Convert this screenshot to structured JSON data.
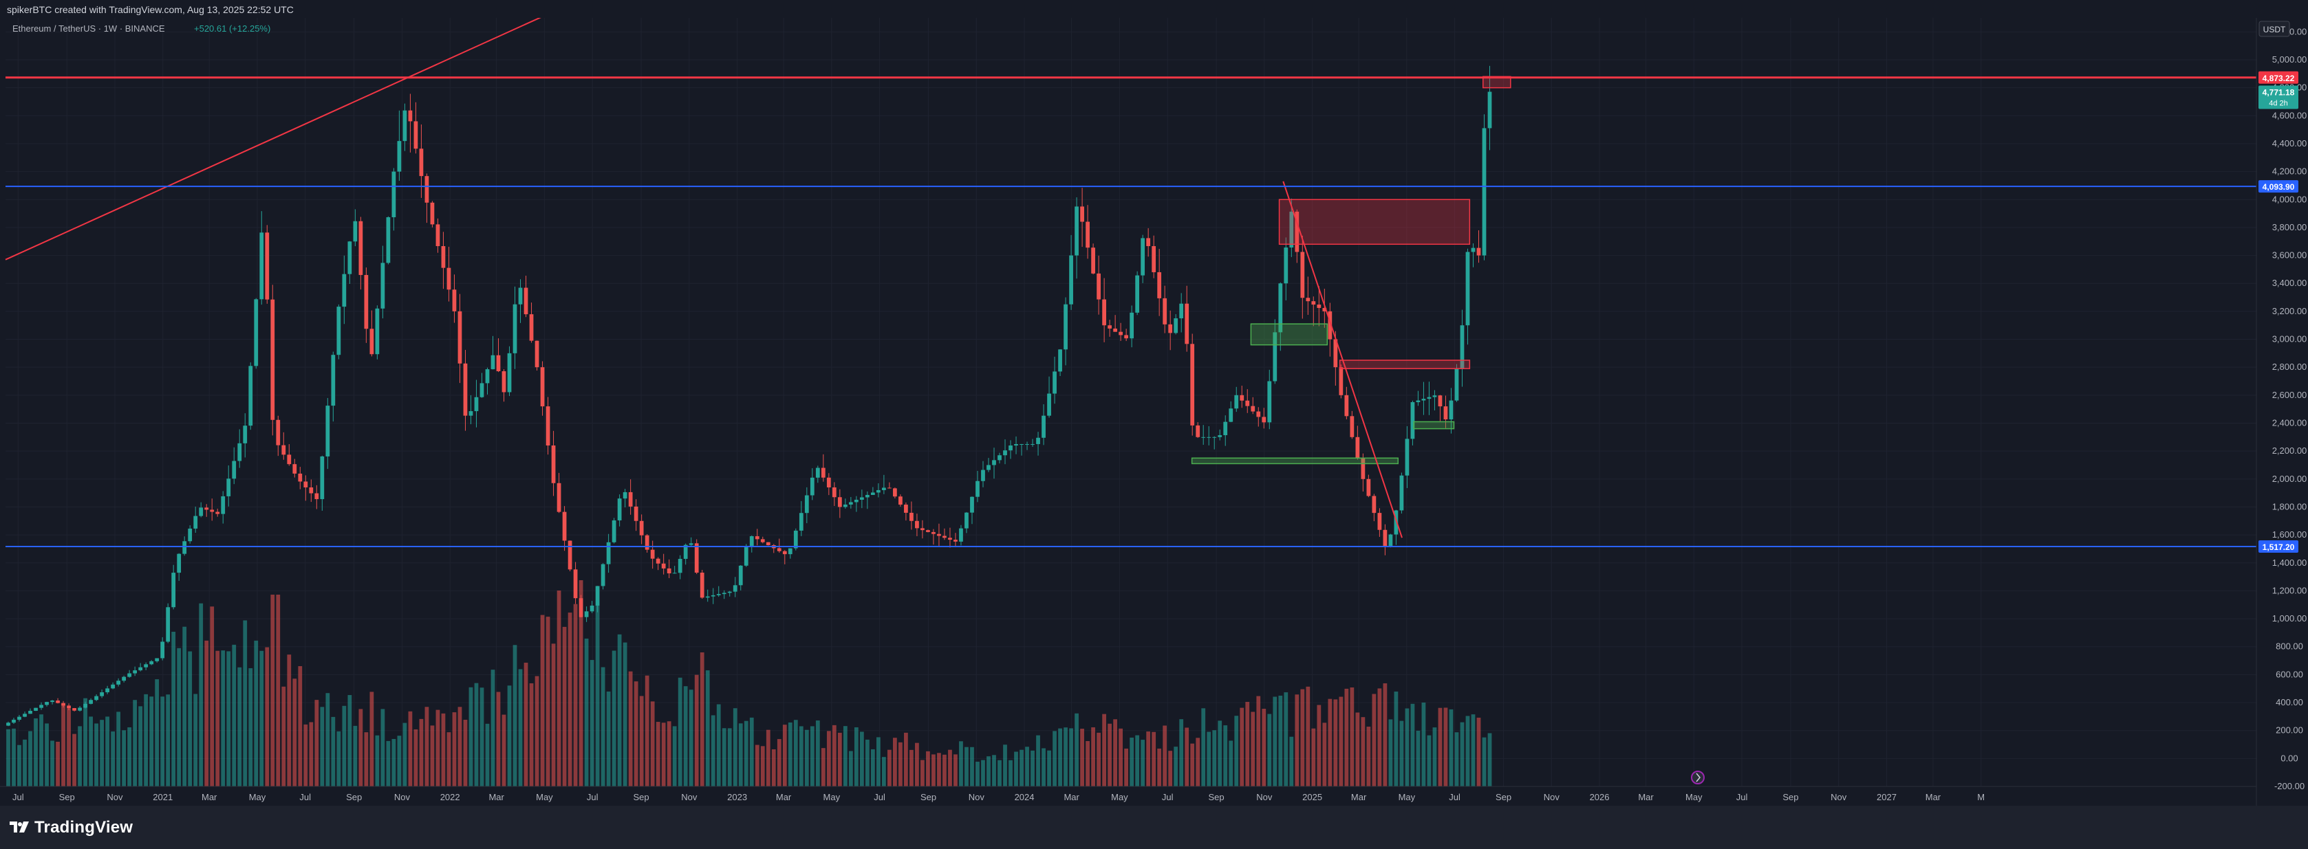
{
  "header": {
    "caption": "spikerBTC created with TradingView.com, Aug 13, 2025 22:52 UTC"
  },
  "footer": {
    "brand": "TradingView"
  },
  "legend": {
    "symbol": "Ethereum / TetherUS · 1W · BINANCE",
    "change": "+520.61 (+12.25%)"
  },
  "currency_button": "USDT",
  "colors": {
    "background": "#161a25",
    "up": "#26a69a",
    "down": "#ef5350",
    "resistance": "#f23645",
    "support": "#2962ff"
  },
  "chart_data": {
    "type": "candlestick",
    "timeframe": "1W",
    "ylim": [
      -200,
      5300
    ],
    "y_ticks": [
      5200,
      5000,
      4800,
      4600,
      4400,
      4200,
      4000,
      3800,
      3600,
      3400,
      3200,
      3000,
      2800,
      2600,
      2400,
      2200,
      2000,
      1800,
      1600,
      1400,
      1200,
      1000,
      800,
      600,
      400,
      200,
      0,
      -200
    ],
    "y_tick_labels": [
      "5,200.00",
      "5,000.00",
      "4,800.00",
      "4,600.00",
      "4,400.00",
      "4,200.00",
      "4,000.00",
      "3,800.00",
      "3,600.00",
      "3,400.00",
      "3,200.00",
      "3,000.00",
      "2,800.00",
      "2,600.00",
      "2,400.00",
      "2,200.00",
      "2,000.00",
      "1,800.00",
      "1,600.00",
      "1,400.00",
      "1,200.00",
      "1,000.00",
      "800.00",
      "600.00",
      "400.00",
      "200.00",
      "0.00",
      "-200.00"
    ],
    "x_range": [
      "2020-06-15",
      "2028-04-15"
    ],
    "x_ticks": [
      {
        "date": "2020-07-01",
        "label": "Jul"
      },
      {
        "date": "2020-09-01",
        "label": "Sep"
      },
      {
        "date": "2020-11-01",
        "label": "Nov"
      },
      {
        "date": "2021-01-01",
        "label": "2021"
      },
      {
        "date": "2021-03-01",
        "label": "Mar"
      },
      {
        "date": "2021-05-01",
        "label": "May"
      },
      {
        "date": "2021-07-01",
        "label": "Jul"
      },
      {
        "date": "2021-09-01",
        "label": "Sep"
      },
      {
        "date": "2021-11-01",
        "label": "Nov"
      },
      {
        "date": "2022-01-01",
        "label": "2022"
      },
      {
        "date": "2022-03-01",
        "label": "Mar"
      },
      {
        "date": "2022-05-01",
        "label": "May"
      },
      {
        "date": "2022-07-01",
        "label": "Jul"
      },
      {
        "date": "2022-09-01",
        "label": "Sep"
      },
      {
        "date": "2022-11-01",
        "label": "Nov"
      },
      {
        "date": "2023-01-01",
        "label": "2023"
      },
      {
        "date": "2023-03-01",
        "label": "Mar"
      },
      {
        "date": "2023-05-01",
        "label": "May"
      },
      {
        "date": "2023-07-01",
        "label": "Jul"
      },
      {
        "date": "2023-09-01",
        "label": "Sep"
      },
      {
        "date": "2023-11-01",
        "label": "Nov"
      },
      {
        "date": "2024-01-01",
        "label": "2024"
      },
      {
        "date": "2024-03-01",
        "label": "Mar"
      },
      {
        "date": "2024-05-01",
        "label": "May"
      },
      {
        "date": "2024-07-01",
        "label": "Jul"
      },
      {
        "date": "2024-09-01",
        "label": "Sep"
      },
      {
        "date": "2024-11-01",
        "label": "Nov"
      },
      {
        "date": "2025-01-01",
        "label": "2025"
      },
      {
        "date": "2025-03-01",
        "label": "Mar"
      },
      {
        "date": "2025-05-01",
        "label": "May"
      },
      {
        "date": "2025-07-01",
        "label": "Jul"
      },
      {
        "date": "2025-09-01",
        "label": "Sep"
      },
      {
        "date": "2025-11-01",
        "label": "Nov"
      },
      {
        "date": "2026-01-01",
        "label": "2026"
      },
      {
        "date": "2026-03-01",
        "label": "Mar"
      },
      {
        "date": "2026-05-01",
        "label": "May"
      },
      {
        "date": "2026-07-01",
        "label": "Jul"
      },
      {
        "date": "2026-09-01",
        "label": "Sep"
      },
      {
        "date": "2026-11-01",
        "label": "Nov"
      },
      {
        "date": "2027-01-01",
        "label": "2027"
      },
      {
        "date": "2027-03-01",
        "label": "Mar"
      },
      {
        "date": "2027-05-01",
        "label": "M"
      }
    ],
    "price_anchors": [
      [
        "2020-06-15",
        235
      ],
      [
        "2020-08-15",
        420
      ],
      [
        "2020-09-15",
        340
      ],
      [
        "2020-11-20",
        600
      ],
      [
        "2021-01-01",
        730
      ],
      [
        "2021-01-20",
        1400
      ],
      [
        "2021-02-20",
        1800
      ],
      [
        "2021-03-15",
        1750
      ],
      [
        "2021-04-20",
        2400
      ],
      [
        "2021-05-12",
        3900
      ],
      [
        "2021-05-25",
        2300
      ],
      [
        "2021-06-25",
        2000
      ],
      [
        "2021-07-20",
        1850
      ],
      [
        "2021-08-15",
        3200
      ],
      [
        "2021-09-05",
        3900
      ],
      [
        "2021-09-25",
        2800
      ],
      [
        "2021-10-25",
        4200
      ],
      [
        "2021-11-10",
        4700
      ],
      [
        "2021-12-05",
        4000
      ],
      [
        "2022-01-10",
        3200
      ],
      [
        "2022-01-25",
        2400
      ],
      [
        "2022-03-01",
        2900
      ],
      [
        "2022-03-15",
        2600
      ],
      [
        "2022-04-01",
        3450
      ],
      [
        "2022-04-25",
        2800
      ],
      [
        "2022-05-15",
        2000
      ],
      [
        "2022-06-18",
        1000
      ],
      [
        "2022-07-05",
        1100
      ],
      [
        "2022-08-12",
        1950
      ],
      [
        "2022-09-15",
        1450
      ],
      [
        "2022-10-15",
        1300
      ],
      [
        "2022-11-05",
        1600
      ],
      [
        "2022-11-20",
        1150
      ],
      [
        "2022-12-31",
        1200
      ],
      [
        "2023-01-20",
        1600
      ],
      [
        "2023-03-10",
        1450
      ],
      [
        "2023-04-15",
        2100
      ],
      [
        "2023-05-15",
        1800
      ],
      [
        "2023-07-15",
        1950
      ],
      [
        "2023-08-20",
        1650
      ],
      [
        "2023-10-10",
        1550
      ],
      [
        "2023-11-10",
        2050
      ],
      [
        "2023-12-20",
        2250
      ],
      [
        "2024-01-20",
        2250
      ],
      [
        "2024-02-20",
        2950
      ],
      [
        "2024-03-12",
        4000
      ],
      [
        "2024-04-15",
        3100
      ],
      [
        "2024-05-15",
        3000
      ],
      [
        "2024-06-05",
        3800
      ],
      [
        "2024-07-05",
        3000
      ],
      [
        "2024-07-25",
        3300
      ],
      [
        "2024-08-06",
        2300
      ],
      [
        "2024-09-08",
        2300
      ],
      [
        "2024-09-30",
        2600
      ],
      [
        "2024-11-05",
        2400
      ],
      [
        "2024-11-25",
        3400
      ],
      [
        "2024-12-10",
        3950
      ],
      [
        "2024-12-22",
        3300
      ],
      [
        "2025-01-20",
        3200
      ],
      [
        "2025-02-10",
        2600
      ],
      [
        "2025-03-10",
        2000
      ],
      [
        "2025-04-09",
        1480
      ],
      [
        "2025-04-22",
        1800
      ],
      [
        "2025-05-12",
        2550
      ],
      [
        "2025-06-10",
        2600
      ],
      [
        "2025-06-25",
        2400
      ],
      [
        "2025-07-12",
        2950
      ],
      [
        "2025-07-22",
        3700
      ],
      [
        "2025-08-04",
        3600
      ],
      [
        "2025-08-13",
        4771
      ]
    ],
    "series": [
      {
        "name": "Ethereum / TetherUS · 1W · BINANCE",
        "kind": "candles",
        "last": 4771.18,
        "countdown": "4d 2h"
      },
      {
        "name": "Volume",
        "kind": "histogram",
        "profile": [
          [
            "2020-06-15",
            0.3
          ],
          [
            "2020-12-15",
            0.45
          ],
          [
            "2021-02-01",
            0.75
          ],
          [
            "2021-05-15",
            0.7
          ],
          [
            "2021-07-01",
            0.45
          ],
          [
            "2021-11-01",
            0.35
          ],
          [
            "2022-01-15",
            0.4
          ],
          [
            "2022-06-15",
            0.85
          ],
          [
            "2022-09-15",
            0.4
          ],
          [
            "2022-11-10",
            0.55
          ],
          [
            "2023-01-15",
            0.3
          ],
          [
            "2023-06-01",
            0.25
          ],
          [
            "2023-10-15",
            0.18
          ],
          [
            "2024-01-15",
            0.22
          ],
          [
            "2024-03-15",
            0.35
          ],
          [
            "2024-06-15",
            0.25
          ],
          [
            "2024-08-10",
            0.35
          ],
          [
            "2024-12-01",
            0.4
          ],
          [
            "2025-03-01",
            0.45
          ],
          [
            "2025-06-01",
            0.35
          ],
          [
            "2025-08-10",
            0.4
          ]
        ],
        "spikes": [
          [
            "2021-01-10",
            0.75
          ],
          [
            "2021-05-20",
            0.93
          ],
          [
            "2022-05-15",
            0.95
          ],
          [
            "2022-06-15",
            1.0
          ],
          [
            "2022-11-12",
            0.65
          ],
          [
            "2025-04-01",
            0.5
          ]
        ]
      }
    ],
    "horizontal_lines": [
      {
        "id": "resistance",
        "value": 4873.22,
        "label": "4,873.22",
        "color": "#f23645"
      },
      {
        "id": "upper-level",
        "value": 4093.9,
        "label": "4,093.90",
        "color": "#2962ff"
      },
      {
        "id": "lower-level",
        "value": 1517.2,
        "label": "1,517.20",
        "color": "#2962ff"
      }
    ],
    "last_price_label": {
      "value": 4771.18,
      "label": "4,771.18",
      "sub": "4d 2h",
      "color": "#26a69a"
    },
    "trendlines": [
      {
        "id": "long-trendline",
        "from": {
          "date": "2020-06-15",
          "price": 3570
        },
        "to": {
          "date": "2022-08-01",
          "price": 5550
        },
        "color": "#f23645"
      },
      {
        "id": "downtrend-line",
        "from": {
          "date": "2024-11-25",
          "price": 4130
        },
        "to": {
          "date": "2025-04-25",
          "price": 1580
        },
        "color": "#f23645"
      }
    ],
    "zones": [
      {
        "id": "supply-zone-large",
        "x0": "2024-11-20",
        "x1": "2025-07-20",
        "y0": 3680,
        "y1": 4000,
        "kind": "supply"
      },
      {
        "id": "supply-zone-small",
        "x0": "2025-02-05",
        "x1": "2025-07-20",
        "y0": 2790,
        "y1": 2850,
        "kind": "supply"
      },
      {
        "id": "ath-target-zone",
        "x0": "2025-08-06",
        "x1": "2025-09-10",
        "y0": 4800,
        "y1": 4880,
        "kind": "supply"
      },
      {
        "id": "demand-zone-1",
        "x0": "2024-10-15",
        "x1": "2025-01-20",
        "y0": 2960,
        "y1": 3110,
        "kind": "demand"
      },
      {
        "id": "demand-zone-2",
        "x0": "2024-08-01",
        "x1": "2025-04-20",
        "y0": 2110,
        "y1": 2150,
        "kind": "demand"
      },
      {
        "id": "demand-zone-3",
        "x0": "2025-05-10",
        "x1": "2025-06-30",
        "y0": 2360,
        "y1": 2410,
        "kind": "demand"
      }
    ]
  }
}
